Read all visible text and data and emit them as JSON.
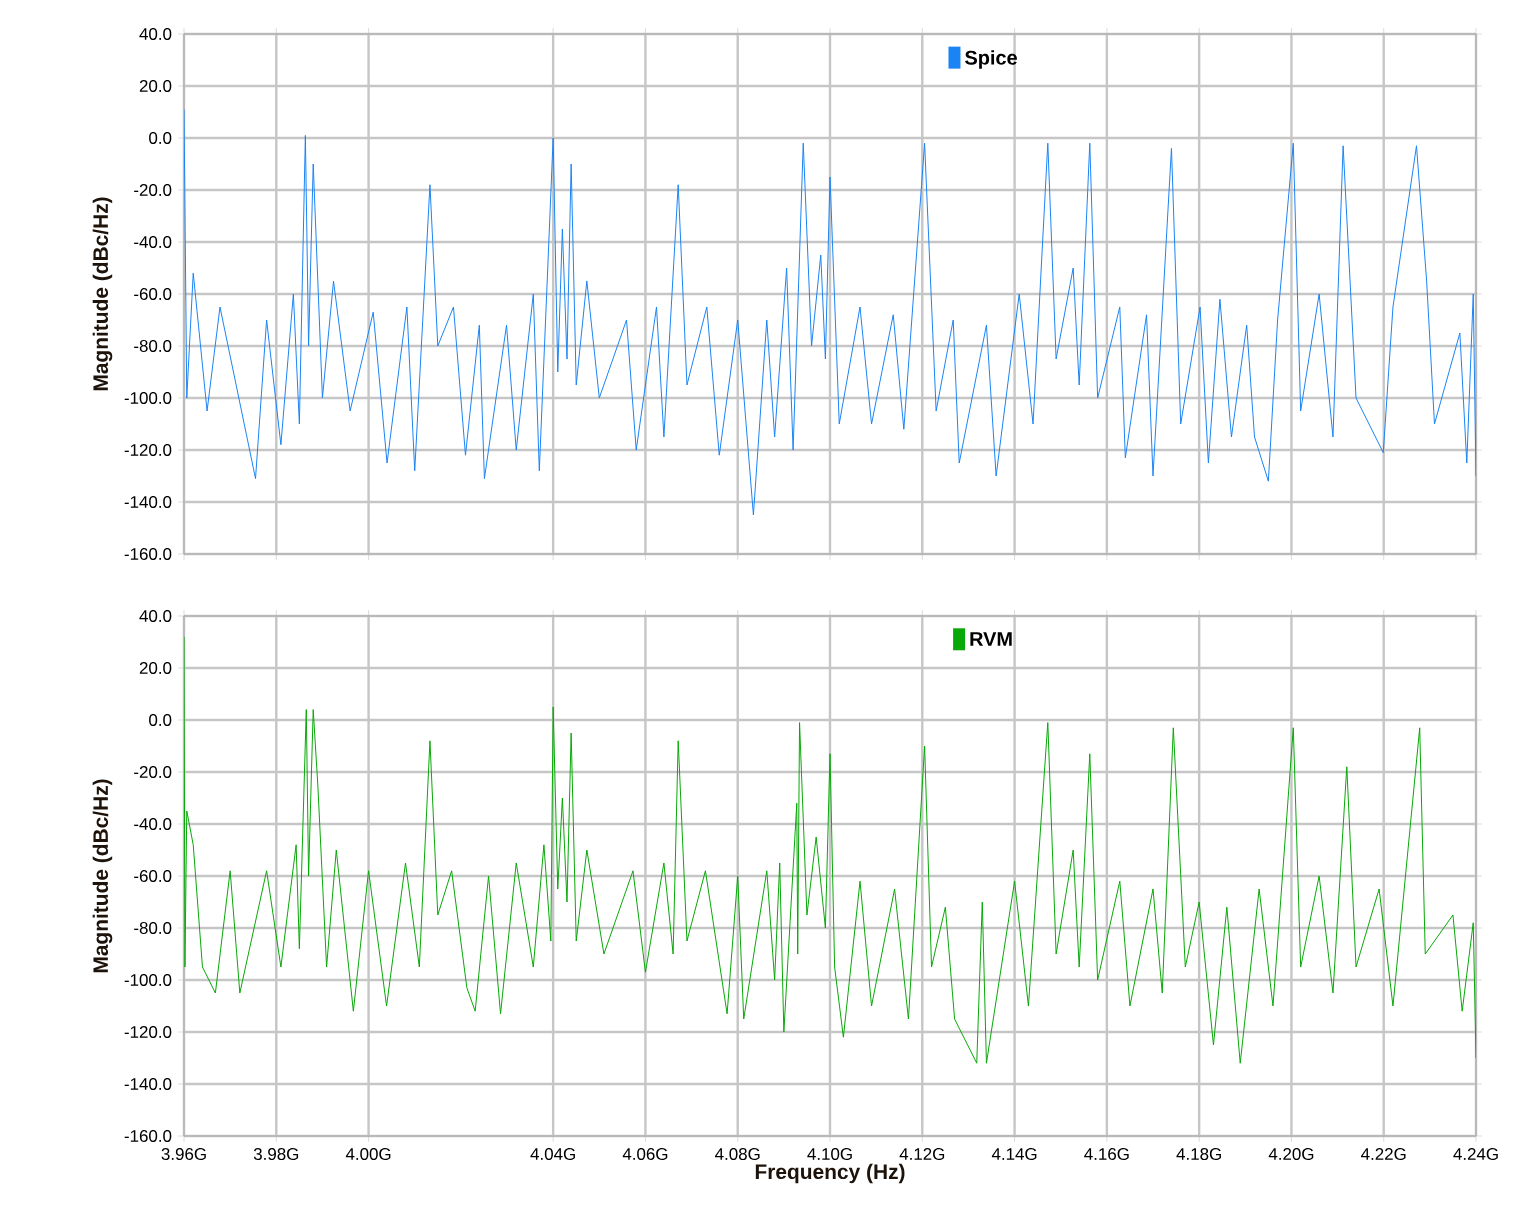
{
  "chart_data": [
    {
      "type": "line",
      "ylabel": "Magnitude (dBc/Hz)",
      "legend": "top",
      "grid": true,
      "marker": "none",
      "tick_labels": "y",
      "xlim": [
        3.96,
        4.24
      ],
      "ylim": [
        -160,
        40
      ],
      "xticks": [
        {
          "value": 3.96,
          "label": null
        },
        {
          "value": 3.98,
          "label": null
        },
        {
          "value": 4.0,
          "label": null
        },
        {
          "value": 4.04,
          "label": null
        },
        {
          "value": 4.06,
          "label": null
        },
        {
          "value": 4.08,
          "label": null
        },
        {
          "value": 4.1,
          "label": null
        },
        {
          "value": 4.12,
          "label": null
        },
        {
          "value": 4.14,
          "label": null
        },
        {
          "value": 4.16,
          "label": null
        },
        {
          "value": 4.18,
          "label": null
        },
        {
          "value": 4.2,
          "label": null
        },
        {
          "value": 4.22,
          "label": null
        },
        {
          "value": 4.24,
          "label": null
        }
      ],
      "yticks": [
        {
          "value": 40,
          "label": "40.0"
        },
        {
          "value": 20,
          "label": "20.0"
        },
        {
          "value": 0,
          "label": "0.0"
        },
        {
          "value": -20,
          "label": "-20.0"
        },
        {
          "value": -40,
          "label": "-40.0"
        },
        {
          "value": -60,
          "label": "-60.0"
        },
        {
          "value": -80,
          "label": "-80.0"
        },
        {
          "value": -100,
          "label": "-100.0"
        },
        {
          "value": -120,
          "label": "-120.0"
        },
        {
          "value": -140,
          "label": "-140.0"
        },
        {
          "value": -160,
          "label": "-160.0"
        }
      ],
      "series": [
        {
          "name": "Spice",
          "color": "#1a84f5",
          "x": [
            3.96,
            3.9606,
            3.962,
            3.965,
            3.9678,
            3.9755,
            3.9779,
            3.981,
            3.9837,
            3.985,
            3.9863,
            3.987,
            3.988,
            3.99,
            3.9924,
            3.996,
            4.001,
            4.004,
            4.0083,
            4.01,
            4.0133,
            4.015,
            4.0184,
            4.021,
            4.024,
            4.0251,
            4.0299,
            4.032,
            4.0357,
            4.037,
            4.04,
            4.041,
            4.042,
            4.043,
            4.0439,
            4.045,
            4.0473,
            4.05,
            4.0559,
            4.058,
            4.0624,
            4.064,
            4.0671,
            4.069,
            4.0733,
            4.076,
            4.08,
            4.0834,
            4.0863,
            4.088,
            4.0906,
            4.092,
            4.0942,
            4.096,
            4.098,
            4.099,
            4.1,
            4.102,
            4.1065,
            4.109,
            4.1137,
            4.116,
            4.1205,
            4.123,
            4.1267,
            4.128,
            4.1339,
            4.136,
            4.141,
            4.144,
            4.1472,
            4.149,
            4.1527,
            4.154,
            4.1563,
            4.158,
            4.1628,
            4.164,
            4.1686,
            4.17,
            4.174,
            4.176,
            4.1802,
            4.182,
            4.1845,
            4.187,
            4.1903,
            4.192,
            4.195,
            4.197,
            4.2004,
            4.202,
            4.206,
            4.209,
            4.2112,
            4.214,
            4.2199,
            4.222,
            4.2271,
            4.2293,
            4.231,
            4.2365,
            4.238,
            4.2394,
            4.24
          ],
          "values": [
            11,
            -100,
            -52,
            -105,
            -65,
            -131,
            -70,
            -118,
            -60,
            -110,
            1,
            -80,
            -10,
            -100,
            -55,
            -105,
            -67,
            -125,
            -65,
            -128,
            -18,
            -80,
            -65,
            -122,
            -72,
            -131,
            -72,
            -120,
            -60,
            -128,
            0,
            -90,
            -35,
            -85,
            -10,
            -95,
            -55,
            -100,
            -70,
            -120,
            -65,
            -115,
            -18,
            -95,
            -65,
            -122,
            -70,
            -145,
            -70,
            -115,
            -50,
            -120,
            -2,
            -80,
            -45,
            -85,
            -15,
            -110,
            -65,
            -110,
            -68,
            -112,
            -2,
            -105,
            -70,
            -125,
            -72,
            -130,
            -60,
            -110,
            -2,
            -85,
            -50,
            -95,
            -2,
            -100,
            -65,
            -123,
            -68,
            -130,
            -4,
            -110,
            -65,
            -125,
            -62,
            -115,
            -72,
            -115,
            -132,
            -70,
            -2,
            -105,
            -60,
            -115,
            -3,
            -100,
            -121,
            -65,
            -3,
            -55,
            -110,
            -75,
            -125,
            -60,
            -130
          ]
        }
      ]
    },
    {
      "type": "line",
      "xlabel": "Frequency (Hz)",
      "ylabel": "Magnitude (dBc/Hz)",
      "legend": "top",
      "grid": true,
      "marker": "none",
      "xlim": [
        3.96,
        4.24
      ],
      "ylim": [
        -160,
        40
      ],
      "xticks": [
        {
          "value": 3.96,
          "label": "3.96G"
        },
        {
          "value": 3.98,
          "label": "3.98G"
        },
        {
          "value": 4.0,
          "label": "4.00G"
        },
        {
          "value": 4.04,
          "label": "4.04G"
        },
        {
          "value": 4.06,
          "label": "4.06G"
        },
        {
          "value": 4.08,
          "label": "4.08G"
        },
        {
          "value": 4.1,
          "label": "4.10G"
        },
        {
          "value": 4.12,
          "label": "4.12G"
        },
        {
          "value": 4.14,
          "label": "4.14G"
        },
        {
          "value": 4.16,
          "label": "4.16G"
        },
        {
          "value": 4.18,
          "label": "4.18G"
        },
        {
          "value": 4.2,
          "label": "4.20G"
        },
        {
          "value": 4.22,
          "label": "4.22G"
        },
        {
          "value": 4.24,
          "label": "4.24G"
        }
      ],
      "yticks": [
        {
          "value": 40,
          "label": "40.0"
        },
        {
          "value": 20,
          "label": "20.0"
        },
        {
          "value": 0,
          "label": "0.0"
        },
        {
          "value": -20,
          "label": "-20.0"
        },
        {
          "value": -40,
          "label": "-40.0"
        },
        {
          "value": -60,
          "label": "-60.0"
        },
        {
          "value": -80,
          "label": "-80.0"
        },
        {
          "value": -100,
          "label": "-100.0"
        },
        {
          "value": -120,
          "label": "-120.0"
        },
        {
          "value": -140,
          "label": "-140.0"
        },
        {
          "value": -160,
          "label": "-160.0"
        }
      ],
      "series": [
        {
          "name": "RVM",
          "color": "#07a807",
          "x": [
            3.96,
            3.9602,
            3.9606,
            3.962,
            3.964,
            3.9668,
            3.97,
            3.9721,
            3.9779,
            3.981,
            3.9843,
            3.985,
            3.9865,
            3.987,
            3.988,
            3.989,
            3.9909,
            3.993,
            3.9967,
            4.0,
            4.0039,
            4.008,
            4.011,
            4.0133,
            4.015,
            4.018,
            4.0213,
            4.0231,
            4.026,
            4.0286,
            4.032,
            4.0357,
            4.038,
            4.0395,
            4.04,
            4.041,
            4.042,
            4.043,
            4.0439,
            4.045,
            4.0473,
            4.051,
            4.0573,
            4.06,
            4.064,
            4.066,
            4.0671,
            4.069,
            4.073,
            4.0777,
            4.08,
            4.0813,
            4.0863,
            4.088,
            4.0891,
            4.09,
            4.0928,
            4.093,
            4.0934,
            4.095,
            4.097,
            4.099,
            4.1,
            4.101,
            4.1029,
            4.1065,
            4.109,
            4.114,
            4.117,
            4.1205,
            4.122,
            4.125,
            4.127,
            4.1318,
            4.133,
            4.1339,
            4.14,
            4.143,
            4.1472,
            4.149,
            4.1527,
            4.154,
            4.1563,
            4.158,
            4.1628,
            4.165,
            4.17,
            4.172,
            4.1744,
            4.177,
            4.18,
            4.1831,
            4.186,
            4.1889,
            4.193,
            4.196,
            4.2004,
            4.202,
            4.206,
            4.209,
            4.212,
            4.214,
            4.219,
            4.222,
            4.2278,
            4.229,
            4.235,
            4.237,
            4.2394,
            4.24
          ],
          "values": [
            32,
            -95,
            -35,
            -48,
            -95,
            -105,
            -58,
            -105,
            -58,
            -95,
            -48,
            -88,
            4,
            -60,
            4,
            -25,
            -95,
            -50,
            -112,
            -58,
            -110,
            -55,
            -95,
            -8,
            -75,
            -58,
            -103,
            -112,
            -60,
            -113,
            -55,
            -95,
            -48,
            -85,
            5,
            -65,
            -30,
            -70,
            -5,
            -85,
            -50,
            -90,
            -58,
            -97,
            -55,
            -90,
            -8,
            -85,
            -58,
            -113,
            -60,
            -115,
            -58,
            -100,
            -55,
            -120,
            -32,
            -90,
            -1,
            -75,
            -45,
            -80,
            -13,
            -95,
            -122,
            -62,
            -110,
            -65,
            -115,
            -10,
            -95,
            -72,
            -115,
            -132,
            -70,
            -132,
            -62,
            -110,
            -1,
            -90,
            -50,
            -95,
            -13,
            -100,
            -62,
            -110,
            -65,
            -105,
            -3,
            -95,
            -70,
            -125,
            -72,
            -132,
            -65,
            -110,
            -3,
            -95,
            -60,
            -105,
            -18,
            -95,
            -65,
            -110,
            -3,
            -90,
            -75,
            -112,
            -78,
            -130
          ]
        }
      ]
    }
  ]
}
